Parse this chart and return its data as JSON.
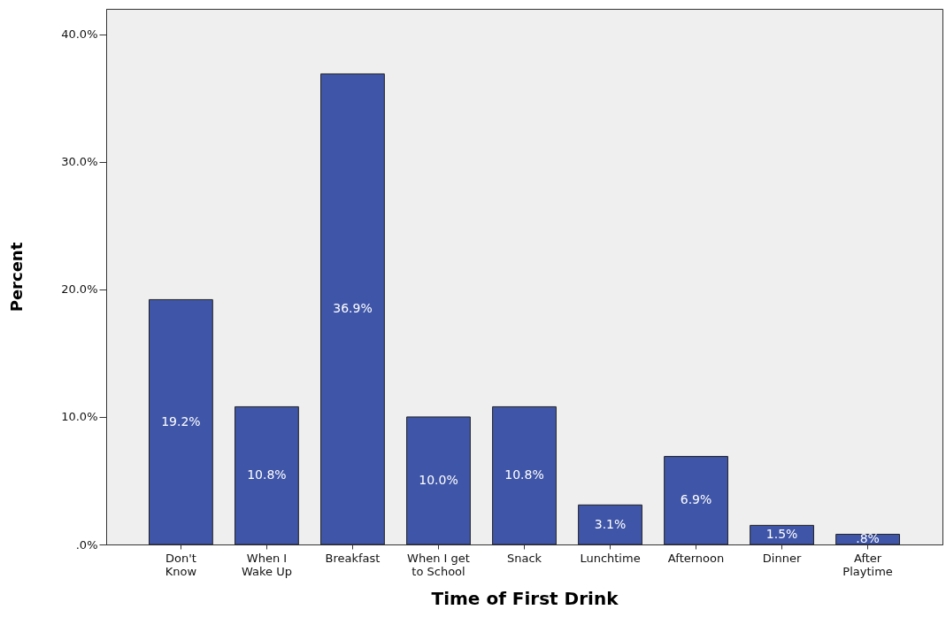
{
  "chart_data": {
    "type": "bar",
    "xlabel": "Time of First Drink",
    "ylabel": "Percent",
    "categories": [
      "Don't\nKnow",
      "When I\nWake Up",
      "Breakfast",
      "When I get\nto School",
      "Snack",
      "Lunchtime",
      "Afternoon",
      "Dinner",
      "After\nPlaytime"
    ],
    "values": [
      19.2,
      10.8,
      36.9,
      10.0,
      10.8,
      3.1,
      6.9,
      1.5,
      0.8
    ],
    "value_labels": [
      "19.2%",
      "10.8%",
      "36.9%",
      "10.0%",
      "10.8%",
      "3.1%",
      "6.9%",
      "1.5%",
      ".8%"
    ],
    "color": "#3f55a8",
    "ylim": [
      0,
      42
    ],
    "yticks": [
      {
        "value": 0,
        "label": ".0%"
      },
      {
        "value": 10,
        "label": "10.0%"
      },
      {
        "value": 20,
        "label": "20.0%"
      },
      {
        "value": 30,
        "label": "30.0%"
      },
      {
        "value": 40,
        "label": "40.0%"
      }
    ],
    "grid": false
  }
}
